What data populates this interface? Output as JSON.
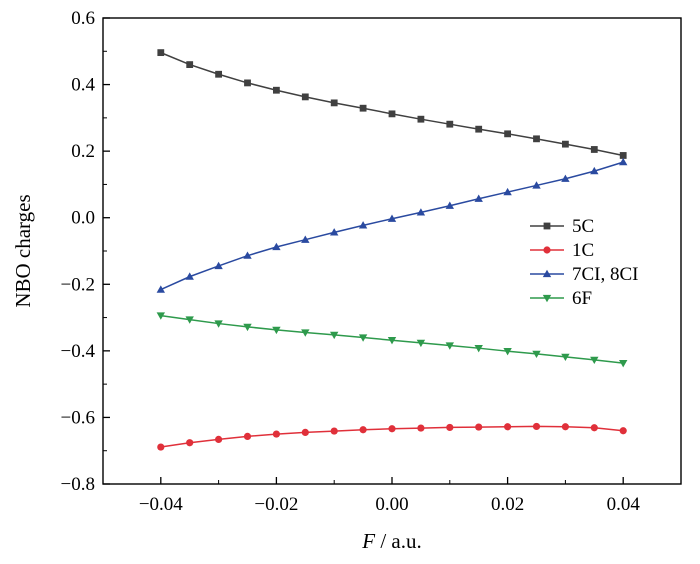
{
  "chart_data": {
    "type": "line",
    "xlabel_italic": "F",
    "xlabel_unit": " / a.u.",
    "ylabel": "NBO charges",
    "xlim": [
      -0.05,
      0.05
    ],
    "ylim": [
      -0.8,
      0.6
    ],
    "x_ticks": [
      -0.04,
      -0.02,
      0.0,
      0.02,
      0.04
    ],
    "x_tick_labels": [
      "−0.04",
      "−0.02",
      "0.00",
      "0.02",
      "0.04"
    ],
    "y_ticks": [
      0.6,
      0.4,
      0.2,
      0.0,
      -0.2,
      -0.4,
      -0.6,
      -0.8
    ],
    "y_tick_labels": [
      "0.6",
      "0.4",
      "0.2",
      "0.0",
      "−0.2",
      "−0.4",
      "−0.6",
      "−0.8"
    ],
    "grid": false,
    "legend_position": "right",
    "x": [
      -0.04,
      -0.035,
      -0.03,
      -0.025,
      -0.02,
      -0.015,
      -0.01,
      -0.005,
      0.0,
      0.005,
      0.01,
      0.015,
      0.02,
      0.025,
      0.03,
      0.035,
      0.04
    ],
    "series": [
      {
        "name": "5C",
        "color": "#404040",
        "marker": "square",
        "values": [
          0.496,
          0.46,
          0.431,
          0.405,
          0.383,
          0.363,
          0.345,
          0.329,
          0.312,
          0.296,
          0.281,
          0.266,
          0.252,
          0.237,
          0.221,
          0.205,
          0.187
        ]
      },
      {
        "name": "1C",
        "color": "#e0303a",
        "marker": "circle",
        "values": [
          -0.689,
          -0.676,
          -0.666,
          -0.657,
          -0.65,
          -0.645,
          -0.641,
          -0.637,
          -0.634,
          -0.632,
          -0.63,
          -0.629,
          -0.628,
          -0.627,
          -0.628,
          -0.631,
          -0.64
        ]
      },
      {
        "name": "7CI, 8CI",
        "color": "#2a4aa0",
        "marker": "triangle-up",
        "values": [
          -0.216,
          -0.177,
          -0.145,
          -0.114,
          -0.088,
          -0.066,
          -0.044,
          -0.023,
          -0.003,
          0.016,
          0.036,
          0.057,
          0.077,
          0.097,
          0.117,
          0.14,
          0.167
        ]
      },
      {
        "name": "6F",
        "color": "#2e9a4c",
        "marker": "triangle-down",
        "values": [
          -0.294,
          -0.306,
          -0.318,
          -0.328,
          -0.337,
          -0.345,
          -0.352,
          -0.36,
          -0.368,
          -0.376,
          -0.384,
          -0.392,
          -0.401,
          -0.409,
          -0.418,
          -0.427,
          -0.437
        ]
      }
    ]
  }
}
